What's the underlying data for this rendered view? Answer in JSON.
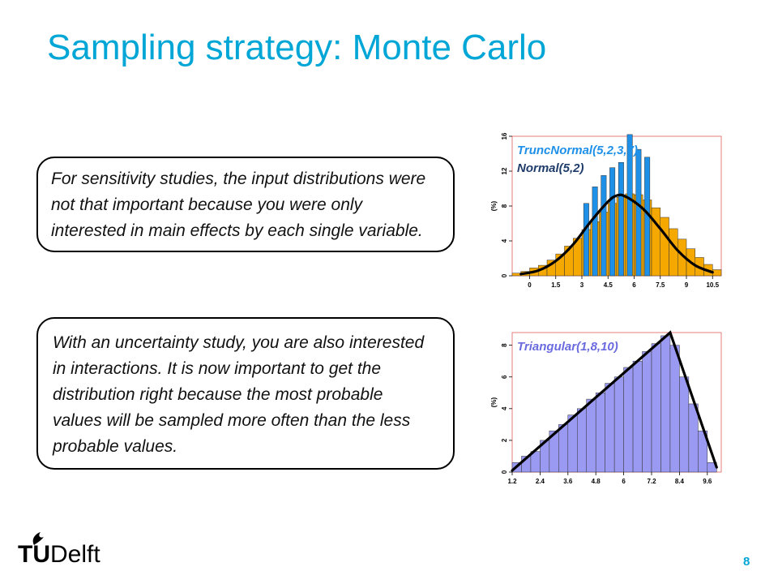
{
  "slide": {
    "title": "Sampling strategy: Monte Carlo",
    "page_number": "8",
    "logo": {
      "tu": "TU",
      "delft": "Delft"
    }
  },
  "textboxes": [
    {
      "lines": [
        "For sensitivity studies, the input distributions were",
        "not that important because you were only",
        "interested in main effects by each single variable."
      ]
    },
    {
      "lines": [
        "With an uncertainty study, you are also interested",
        "in interactions. It is now important to get the",
        "distribution right because the most probable",
        "values will be sampled more often than the less",
        "probable values."
      ]
    }
  ],
  "colors": {
    "title": "#00a6d6",
    "truncnormal": "#1e90e8",
    "normal_bars": "#f5a800",
    "normal_legend": "#1f3c6b",
    "triangular": "#9a9af2",
    "triangular_legend": "#6b6be0",
    "frame": "#e06060",
    "curve": "#000000"
  },
  "chart_data": [
    {
      "type": "bar",
      "ylabel": "(%)",
      "xlim": [
        -1,
        11
      ],
      "ylim": [
        0,
        16
      ],
      "x_ticks": [
        "0",
        "1.5",
        "3",
        "4.5",
        "6",
        "7.5",
        "9",
        "10.5"
      ],
      "y_ticks": [
        "0",
        "4",
        "8",
        "12",
        "16"
      ],
      "series": [
        {
          "name": "Normal(5,2)",
          "bar_width": 0.5,
          "x": [
            -0.75,
            -0.25,
            0.25,
            0.75,
            1.25,
            1.75,
            2.25,
            2.75,
            3.25,
            3.75,
            4.25,
            4.75,
            5.25,
            5.75,
            6.25,
            6.75,
            7.25,
            7.75,
            8.25,
            8.75,
            9.25,
            9.75,
            10.25,
            10.75
          ],
          "values": [
            0.3,
            0.5,
            0.9,
            1.2,
            1.8,
            2.5,
            3.4,
            4.3,
            5.3,
            6.2,
            7.3,
            8.3,
            9.0,
            9.4,
            9.3,
            8.7,
            7.8,
            6.7,
            5.4,
            4.2,
            3.1,
            2.1,
            1.3,
            0.7
          ]
        },
        {
          "name": "TruncNormal(5,2,3,7)",
          "bar_width": 0.3,
          "x": [
            3.25,
            3.75,
            4.25,
            4.75,
            5.25,
            5.75,
            6.25,
            6.75
          ],
          "values": [
            8.3,
            10.2,
            11.5,
            12.4,
            13.0,
            16.2,
            14.5,
            13.6
          ]
        },
        {
          "name": "Normal(5,2) density",
          "type": "line",
          "x": [
            -0.5,
            0.5,
            1.5,
            2.5,
            3.5,
            4.5,
            5.0,
            5.5,
            6.5,
            7.5,
            8.5,
            9.5,
            10.5
          ],
          "values": [
            0.2,
            0.6,
            1.7,
            3.6,
            6.2,
            8.5,
            9.2,
            9.1,
            7.7,
            5.4,
            2.9,
            1.2,
            0.4
          ]
        }
      ],
      "frame": true
    },
    {
      "type": "bar",
      "ylabel": "(%)",
      "xlim": [
        1.2,
        10.2
      ],
      "ylim": [
        0,
        8.8
      ],
      "x_ticks": [
        "1.2",
        "2.4",
        "3.6",
        "4.8",
        "6",
        "7.2",
        "8.4",
        "9.6"
      ],
      "y_ticks": [
        "0",
        "2",
        "4",
        "6",
        "8"
      ],
      "series": [
        {
          "name": "Triangular(1,8,10)",
          "bar_width": 0.4,
          "x": [
            1.4,
            1.8,
            2.2,
            2.6,
            3.0,
            3.4,
            3.8,
            4.2,
            4.6,
            5.0,
            5.4,
            5.8,
            6.2,
            6.6,
            7.0,
            7.4,
            7.8,
            8.2,
            8.6,
            9.0,
            9.4,
            9.8
          ],
          "values": [
            0.6,
            1.0,
            1.3,
            2.0,
            2.6,
            3.0,
            3.6,
            4.0,
            4.6,
            5.0,
            5.6,
            6.0,
            6.6,
            7.0,
            7.6,
            8.1,
            8.6,
            8.0,
            6.0,
            4.3,
            2.6,
            0.6
          ]
        },
        {
          "name": "Triangular density",
          "type": "line",
          "x": [
            1.2,
            8.0,
            10.0
          ],
          "values": [
            0.1,
            8.8,
            0.3
          ]
        }
      ],
      "frame": true
    }
  ]
}
